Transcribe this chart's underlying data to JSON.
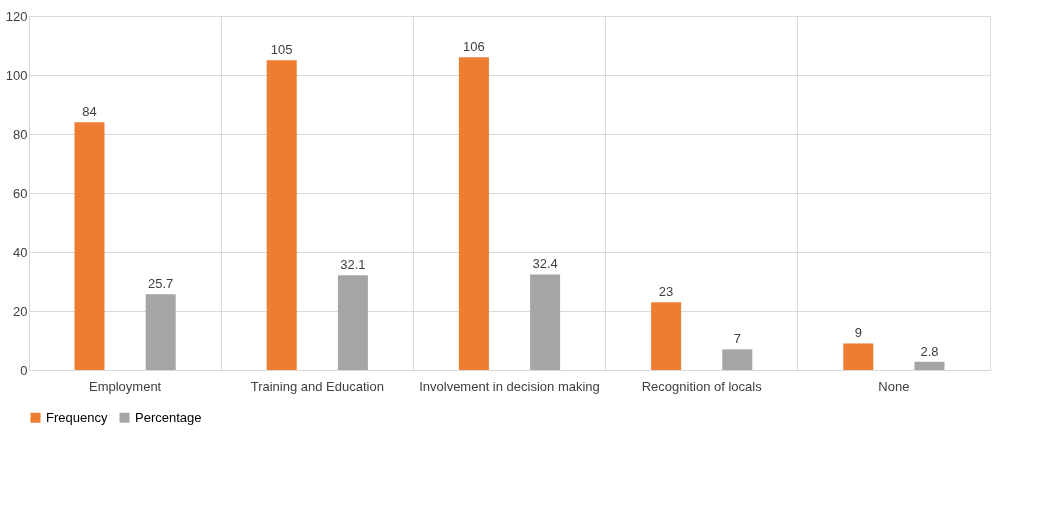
{
  "chart_data": {
    "type": "bar",
    "categories": [
      "Employment",
      "Training and Education",
      "Involvement in decision making",
      "Recognition of locals",
      "None"
    ],
    "series": [
      {
        "name": "Frequency",
        "color": "#ed7d31",
        "values": [
          84,
          105,
          106,
          23,
          9
        ]
      },
      {
        "name": "Percentage",
        "color": "#a5a5a5",
        "values": [
          25.7,
          32.1,
          32.4,
          7,
          2.8
        ]
      }
    ],
    "ylim": [
      0,
      120
    ],
    "yticks": [
      0,
      20,
      40,
      60,
      80,
      100,
      120
    ],
    "grid": true,
    "legend": "bottom",
    "data_labels": true
  }
}
